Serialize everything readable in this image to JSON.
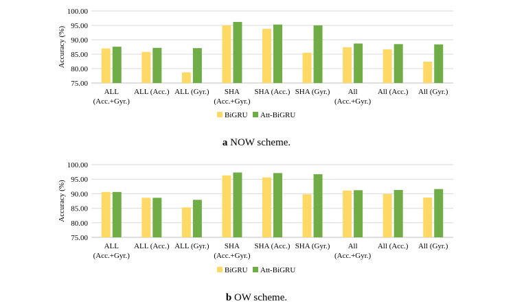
{
  "colors": {
    "bigru": "#FFD966",
    "att_bigru": "#70AD47",
    "grid": "#D9D9D9",
    "axis": "#BFBFBF"
  },
  "chart_data": [
    {
      "type": "bar",
      "title": "NOW scheme.",
      "caption_letter": "a",
      "ylabel": "Accuracy (%)",
      "ylim": [
        75,
        100
      ],
      "yticks": [
        "75.00",
        "80.00",
        "85.00",
        "90.00",
        "95.00",
        "100.00"
      ],
      "categories": [
        [
          "ALL",
          "(Acc.+Gyr.)"
        ],
        [
          "ALL (Acc.)"
        ],
        [
          "ALL (Gyr.)"
        ],
        [
          "SHA",
          "(Acc.+Gyr.)"
        ],
        [
          "SHA (Acc.)"
        ],
        [
          "SHA (Gyr.)"
        ],
        [
          "All",
          "(Acc.+Gyr.)"
        ],
        [
          "All (Acc.)"
        ],
        [
          "All (Gyr.)"
        ]
      ],
      "series": [
        {
          "name": "BiGRU",
          "values": [
            87.0,
            85.8,
            78.7,
            95.0,
            93.8,
            85.5,
            87.4,
            86.7,
            82.4
          ]
        },
        {
          "name": "Att-BiGRU",
          "values": [
            87.6,
            87.2,
            87.1,
            96.2,
            95.3,
            95.0,
            88.7,
            88.5,
            88.4
          ]
        }
      ],
      "legend": "bottom-center"
    },
    {
      "type": "bar",
      "title": "OW scheme.",
      "caption_letter": "b",
      "ylabel": "Accuracy (%)",
      "ylim": [
        75,
        100
      ],
      "yticks": [
        "75.00",
        "80.00",
        "85.00",
        "90.00",
        "95.00",
        "100.00"
      ],
      "categories": [
        [
          "ALL",
          "(Acc.+Gyr.)"
        ],
        [
          "ALL (Acc.)"
        ],
        [
          "ALL (Gyr.)"
        ],
        [
          "SHA",
          "(Acc.+Gyr.)"
        ],
        [
          "SHA (Acc.)"
        ],
        [
          "SHA (Gyr.)"
        ],
        [
          "All",
          "(Acc.+Gyr.)"
        ],
        [
          "All (Acc.)"
        ],
        [
          "All (Gyr.)"
        ]
      ],
      "series": [
        {
          "name": "BiGRU",
          "values": [
            90.6,
            88.6,
            85.3,
            96.3,
            95.6,
            89.8,
            91.1,
            89.9,
            88.7
          ]
        },
        {
          "name": "Att-BiGRU",
          "values": [
            90.6,
            88.6,
            87.9,
            97.3,
            97.1,
            96.7,
            91.2,
            91.3,
            91.6
          ]
        }
      ],
      "legend": "bottom-center"
    }
  ]
}
